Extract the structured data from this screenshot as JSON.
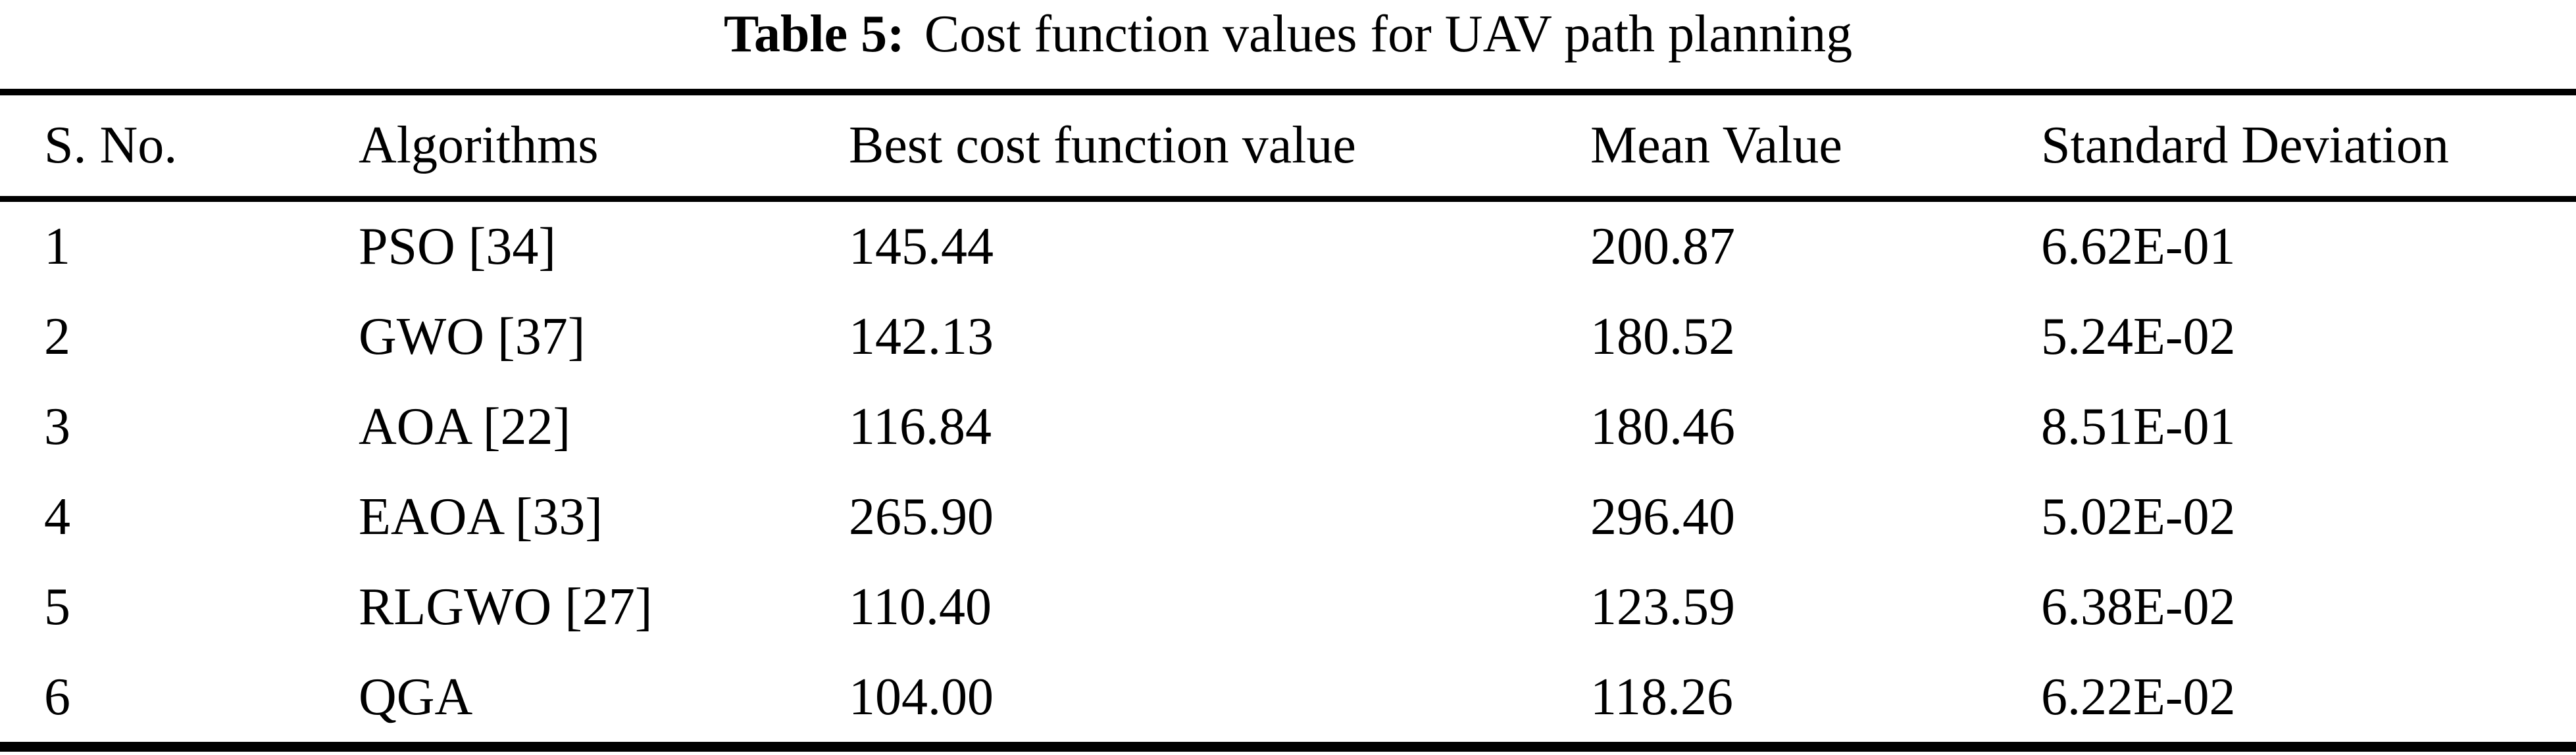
{
  "caption": {
    "label": "Table 5:",
    "text": "Cost function values for UAV path planning"
  },
  "table": {
    "columns": [
      "S. No.",
      "Algorithms",
      "Best cost function value",
      "Mean Value",
      "Standard Deviation"
    ],
    "rows": [
      {
        "sno": "1",
        "algorithm": "PSO [34]",
        "best_cost": "145.44",
        "mean": "200.87",
        "std_dev": "6.62E-01"
      },
      {
        "sno": "2",
        "algorithm": "GWO [37]",
        "best_cost": "142.13",
        "mean": "180.52",
        "std_dev": "5.24E-02"
      },
      {
        "sno": "3",
        "algorithm": "AOA [22]",
        "best_cost": "116.84",
        "mean": "180.46",
        "std_dev": "8.51E-01"
      },
      {
        "sno": "4",
        "algorithm": "EAOA [33]",
        "best_cost": "265.90",
        "mean": "296.40",
        "std_dev": "5.02E-02"
      },
      {
        "sno": "5",
        "algorithm": "RLGWO [27]",
        "best_cost": "110.40",
        "mean": "123.59",
        "std_dev": "6.38E-02"
      },
      {
        "sno": "6",
        "algorithm": "QGA",
        "best_cost": "104.00",
        "mean": "118.26",
        "std_dev": "6.22E-02"
      }
    ]
  },
  "colors": {
    "text": "#000000",
    "background": "#ffffff",
    "rule": "#000000"
  }
}
